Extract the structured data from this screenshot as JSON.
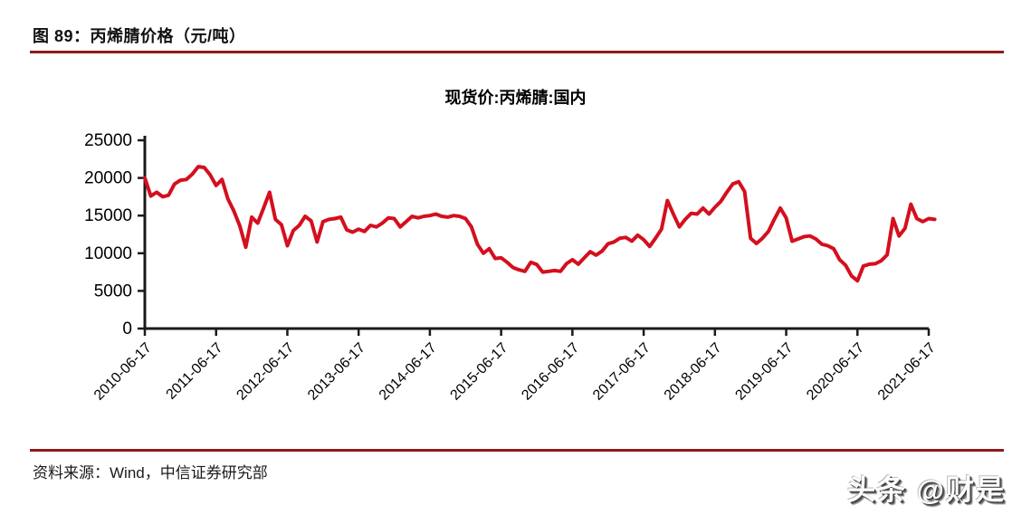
{
  "figure": {
    "title": "图 89：丙烯腈价格（元/吨）"
  },
  "footer": {
    "source": "资料来源：Wind，中信证券研究部"
  },
  "watermark": {
    "text": "头条 @财是"
  },
  "colors": {
    "rule": "#8e1b1c",
    "axis": "#1a1a1a",
    "line": "#d40f1e"
  },
  "chart_data": {
    "type": "line",
    "title": "现货价:丙烯腈:国内",
    "ylabel": "",
    "xlabel": "",
    "ylim": [
      0,
      25000
    ],
    "y_ticks": [
      0,
      5000,
      10000,
      15000,
      20000,
      25000
    ],
    "x_tick_labels": [
      "2010-06-17",
      "2011-06-17",
      "2012-06-17",
      "2013-06-17",
      "2014-06-17",
      "2015-06-17",
      "2016-06-17",
      "2017-06-17",
      "2018-06-17",
      "2019-06-17",
      "2020-06-17",
      "2021-06-17"
    ],
    "x_unit": "monthly samples starting 2010-06, one per month",
    "line_color": "#d40f1e",
    "grid": false,
    "legend_position": "none",
    "values": [
      20000,
      17600,
      18100,
      17500,
      17700,
      19200,
      19700,
      19800,
      20500,
      21500,
      21400,
      20400,
      19000,
      19800,
      17200,
      15600,
      13600,
      10800,
      14800,
      14000,
      16000,
      18100,
      14500,
      13800,
      11000,
      13000,
      13700,
      14900,
      14300,
      11500,
      14200,
      14500,
      14600,
      14800,
      13100,
      12800,
      13200,
      12900,
      13700,
      13500,
      14000,
      14700,
      14600,
      13500,
      14200,
      14900,
      14700,
      14900,
      15000,
      15200,
      14900,
      14800,
      15000,
      14900,
      14600,
      13500,
      11200,
      10000,
      10600,
      9300,
      9400,
      8800,
      8100,
      7800,
      7600,
      8800,
      8500,
      7500,
      7600,
      7700,
      7600,
      8600,
      9150,
      8550,
      9400,
      10200,
      9750,
      10300,
      11250,
      11500,
      12000,
      12100,
      11600,
      12400,
      11800,
      10900,
      12000,
      13200,
      17000,
      15200,
      13500,
      14500,
      15300,
      15200,
      16000,
      15200,
      16100,
      16900,
      18100,
      19200,
      19500,
      18200,
      12000,
      11300,
      12000,
      12900,
      14500,
      16000,
      14700,
      11600,
      11900,
      12200,
      12300,
      11900,
      11200,
      11000,
      10600,
      9150,
      8400,
      7000,
      6350,
      8300,
      8550,
      8600,
      9000,
      9800,
      14600,
      12300,
      13300,
      16500,
      14600,
      14200,
      14600,
      14500
    ]
  }
}
